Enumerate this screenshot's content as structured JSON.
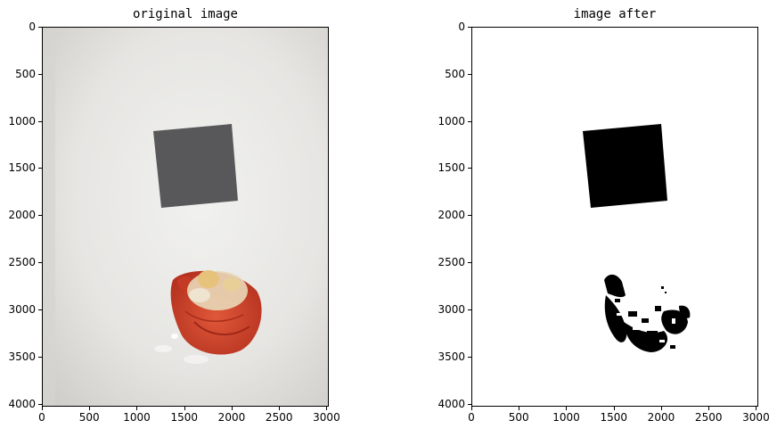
{
  "panels": [
    {
      "title": "original image",
      "x_ticks": [
        "0",
        "500",
        "1000",
        "1500",
        "2000",
        "2500",
        "3000"
      ],
      "y_ticks": [
        "0",
        "500",
        "1000",
        "1500",
        "2000",
        "2500",
        "3000",
        "3500",
        "4000"
      ]
    },
    {
      "title": "image after",
      "x_ticks": [
        "0",
        "500",
        "1000",
        "1500",
        "2000",
        "2500",
        "3000"
      ],
      "y_ticks": [
        "0",
        "500",
        "1000",
        "1500",
        "2000",
        "2500",
        "3000",
        "3500",
        "4000"
      ]
    }
  ],
  "colors": {
    "background": "#e4e3df",
    "card": "#5a5a5c",
    "shrimp": "#d2452c",
    "binary_black": "#000000"
  }
}
